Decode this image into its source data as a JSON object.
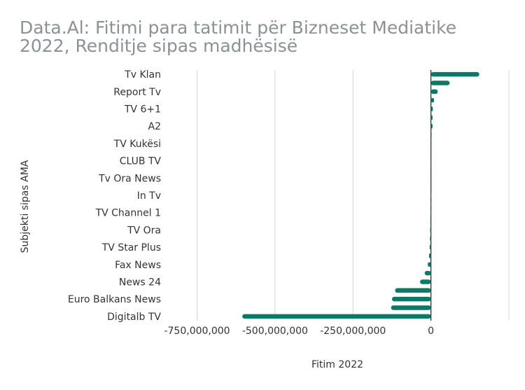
{
  "chart_data": {
    "type": "bar",
    "orientation": "horizontal",
    "title_line1": "Data.Al: Fitimi para tatimit për Bizneset Mediatike",
    "title_line2": "2022, Renditje sipas madhësisë",
    "xlabel": "Fitim 2022",
    "ylabel": "Subjekti sipas AMA",
    "xlim": [
      -850000000,
      250000000
    ],
    "xticks": [
      -750000000,
      -500000000,
      -250000000,
      0
    ],
    "xtick_labels": [
      "-750,000,000",
      "-500,000,000",
      "-250,000,000",
      "0"
    ],
    "grid": true,
    "bar_color": "#0a7a66",
    "categories": [
      "Tv Klan",
      "",
      "Report Tv",
      "",
      "TV 6+1",
      "",
      "A2",
      "",
      "TV Kukësi",
      "",
      "CLUB TV",
      "",
      "Tv Ora News",
      "",
      "In Tv",
      "",
      "TV Channel 1",
      "",
      "TV Ora",
      "",
      "TV Star Plus",
      "",
      "Fax News",
      "",
      "News 24",
      "",
      "Euro Balkans News",
      "",
      "Digitalb TV"
    ],
    "values": [
      155000000,
      60000000,
      22000000,
      10000000,
      6000000,
      5000000,
      5000000,
      2000000,
      1000000,
      500000,
      300000,
      200000,
      100000,
      50000,
      -500000,
      -1000000,
      -1500000,
      -2000000,
      -2500000,
      -3000000,
      -4000000,
      -6000000,
      -10000000,
      -20000000,
      -35000000,
      -115000000,
      -125000000,
      -128000000,
      -605000000
    ]
  }
}
